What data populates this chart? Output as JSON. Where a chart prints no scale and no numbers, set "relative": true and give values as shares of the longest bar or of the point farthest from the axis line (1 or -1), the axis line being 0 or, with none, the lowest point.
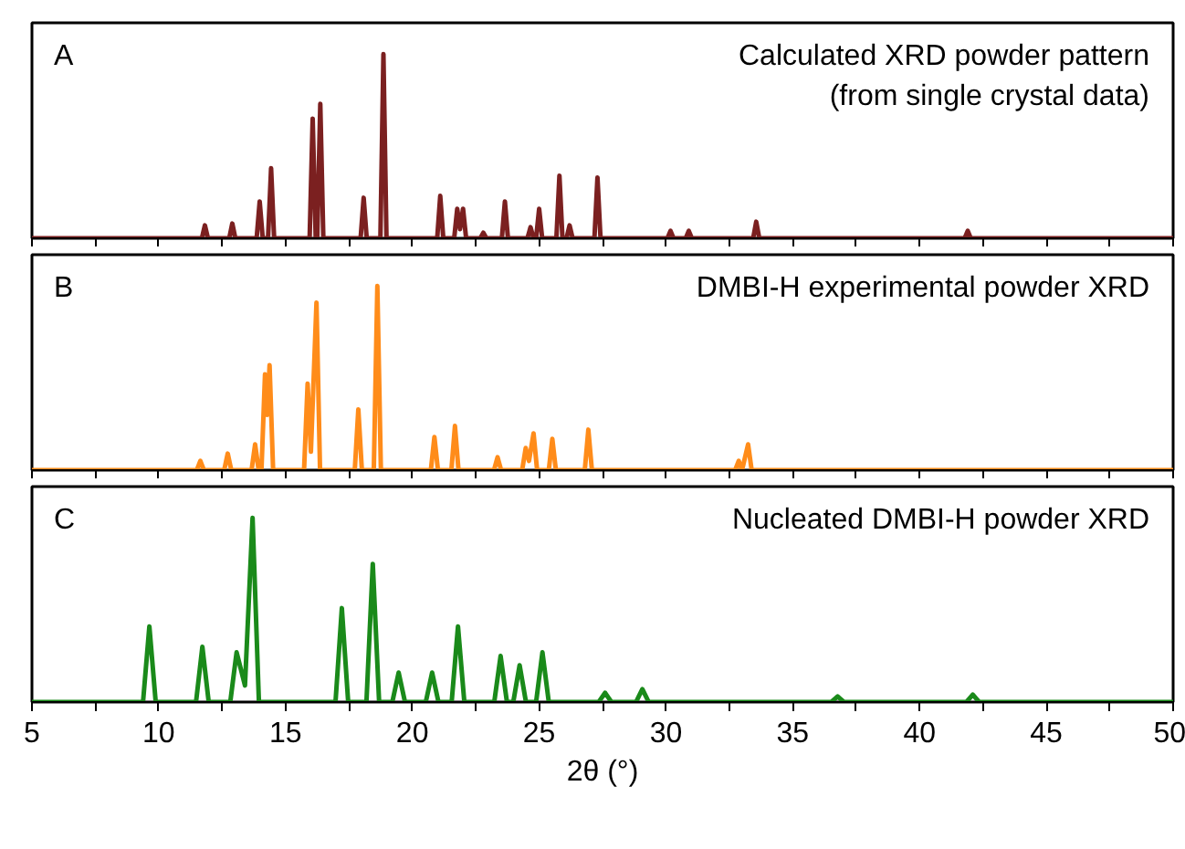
{
  "chart_data": [
    {
      "type": "line",
      "annotations": [
        "A",
        "Calculated XRD powder pattern\n(from single crystal data)"
      ],
      "relative": true,
      "xlim": [
        5,
        50
      ],
      "xticks": [
        5,
        {
          "value": 7.5,
          "label": null
        },
        10,
        {
          "value": 12.5,
          "label": null
        },
        15,
        {
          "value": 17.5,
          "label": null
        },
        20,
        {
          "value": 22.5,
          "label": null
        },
        25,
        {
          "value": 27.5,
          "label": null
        },
        30,
        {
          "value": 32.5,
          "label": null
        },
        35,
        {
          "value": 37.5,
          "label": null
        },
        40,
        {
          "value": 42.5,
          "label": null
        },
        45,
        {
          "value": 47.5,
          "label": null
        },
        50
      ],
      "tick_labels": false,
      "series": [
        {
          "color": "#7b2020",
          "x": [
            5,
            11.7,
            11.82,
            11.94,
            12.78,
            12.9,
            13.02,
            13.86,
            13.98,
            14.1,
            14.31,
            14.43,
            14.55,
            15.95,
            16.07,
            16.19,
            16.25,
            16.37,
            16.49,
            17.96,
            18.08,
            18.2,
            18.74,
            18.86,
            18.98,
            20.98,
            21.1,
            21.22,
            21.65,
            21.77,
            21.88,
            22.0,
            22.12,
            22.68,
            22.8,
            22.92,
            23.53,
            23.65,
            23.77,
            24.54,
            24.66,
            24.78,
            24.88,
            25.0,
            25.12,
            25.68,
            25.8,
            25.92,
            26.08,
            26.2,
            26.32,
            27.18,
            27.3,
            27.42,
            30.06,
            30.18,
            30.3,
            30.78,
            30.9,
            31.02,
            33.44,
            33.56,
            33.68,
            41.78,
            41.9,
            42.02,
            50
          ],
          "values": [
            0,
            0,
            0.07,
            0,
            0,
            0.08,
            0,
            0,
            0.2,
            0,
            0,
            0.38,
            0,
            0,
            0.65,
            0,
            0,
            0.73,
            0,
            0,
            0.22,
            0,
            0,
            1,
            0,
            0,
            0.23,
            0,
            0,
            0.16,
            0.05,
            0.16,
            0,
            0,
            0.03,
            0,
            0,
            0.2,
            0,
            0,
            0.06,
            0,
            0,
            0.16,
            0,
            0,
            0.34,
            0,
            0,
            0.07,
            0,
            0,
            0.33,
            0,
            0,
            0.04,
            0,
            0,
            0.04,
            0,
            0,
            0.09,
            0,
            0,
            0.04,
            0,
            0
          ]
        }
      ]
    },
    {
      "type": "line",
      "annotations": [
        "B",
        "DMBI-H experimental powder XRD"
      ],
      "relative": true,
      "xlim": [
        5,
        50
      ],
      "xticks": [
        5,
        {
          "value": 7.5,
          "label": null
        },
        10,
        {
          "value": 12.5,
          "label": null
        },
        15,
        {
          "value": 17.5,
          "label": null
        },
        20,
        {
          "value": 22.5,
          "label": null
        },
        25,
        {
          "value": 27.5,
          "label": null
        },
        30,
        {
          "value": 32.5,
          "label": null
        },
        35,
        {
          "value": 37.5,
          "label": null
        },
        40,
        {
          "value": 42.5,
          "label": null
        },
        45,
        {
          "value": 47.5,
          "label": null
        },
        50
      ],
      "tick_labels": false,
      "series": [
        {
          "color": "#ff8c1a",
          "x": [
            5,
            11.5,
            11.64,
            11.78,
            12.58,
            12.72,
            12.86,
            13.66,
            13.8,
            13.94,
            14.05,
            14.19,
            14.28,
            14.37,
            14.51,
            15.73,
            15.87,
            16.0,
            16.22,
            16.36,
            17.73,
            17.87,
            18.01,
            18.48,
            18.62,
            18.76,
            20.73,
            20.87,
            21.01,
            21.54,
            21.68,
            21.82,
            23.22,
            23.36,
            23.5,
            24.33,
            24.47,
            24.6,
            24.78,
            24.92,
            25.38,
            25.52,
            25.66,
            26.8,
            26.94,
            27.08,
            32.73,
            32.87,
            33.0,
            33.24,
            33.38,
            50
          ],
          "values": [
            0,
            0,
            0.05,
            0,
            0,
            0.09,
            0,
            0,
            0.14,
            0,
            0,
            0.52,
            0.3,
            0.57,
            0,
            0,
            0.47,
            0.1,
            0.91,
            0,
            0,
            0.33,
            0,
            0,
            1,
            0,
            0,
            0.18,
            0,
            0,
            0.24,
            0,
            0,
            0.07,
            0,
            0,
            0.12,
            0.05,
            0.2,
            0,
            0,
            0.17,
            0,
            0,
            0.22,
            0,
            0,
            0.05,
            0,
            0.14,
            0,
            0
          ]
        }
      ]
    },
    {
      "type": "line",
      "annotations": [
        "C",
        "Nucleated DMBI-H powder XRD"
      ],
      "xlabel": "2θ (°)",
      "relative": true,
      "xlim": [
        5,
        50
      ],
      "xticks": [
        5,
        {
          "value": 7.5,
          "label": null
        },
        10,
        {
          "value": 12.5,
          "label": null
        },
        15,
        {
          "value": 17.5,
          "label": null
        },
        20,
        {
          "value": 22.5,
          "label": null
        },
        25,
        {
          "value": 27.5,
          "label": null
        },
        30,
        {
          "value": 32.5,
          "label": null
        },
        35,
        {
          "value": 37.5,
          "label": null
        },
        40,
        {
          "value": 42.5,
          "label": null
        },
        45,
        {
          "value": 47.5,
          "label": null
        },
        50
      ],
      "tick_labels": "x",
      "series": [
        {
          "color": "#1a8a1a",
          "x": [
            5,
            9.38,
            9.63,
            9.88,
            11.47,
            11.72,
            11.97,
            12.82,
            13.07,
            13.4,
            13.7,
            13.95,
            16.97,
            17.22,
            17.47,
            18.19,
            18.44,
            18.69,
            19.21,
            19.46,
            19.71,
            20.53,
            20.78,
            21.03,
            21.55,
            21.8,
            22.05,
            23.23,
            23.48,
            23.73,
            23.98,
            24.23,
            24.48,
            24.88,
            25.13,
            25.38,
            27.35,
            27.6,
            27.85,
            28.82,
            29.07,
            29.32,
            36.52,
            36.77,
            37.02,
            41.85,
            42.1,
            42.35,
            50
          ],
          "values": [
            0,
            0,
            0.41,
            0,
            0,
            0.3,
            0,
            0,
            0.27,
            0.09,
            1,
            0,
            0,
            0.51,
            0,
            0,
            0.75,
            0,
            0,
            0.16,
            0,
            0,
            0.16,
            0,
            0,
            0.41,
            0,
            0,
            0.25,
            0,
            0,
            0.2,
            0,
            0,
            0.27,
            0,
            0,
            0.05,
            0,
            0,
            0.07,
            0,
            0,
            0.03,
            0,
            0,
            0.04,
            0,
            0
          ]
        }
      ]
    }
  ]
}
